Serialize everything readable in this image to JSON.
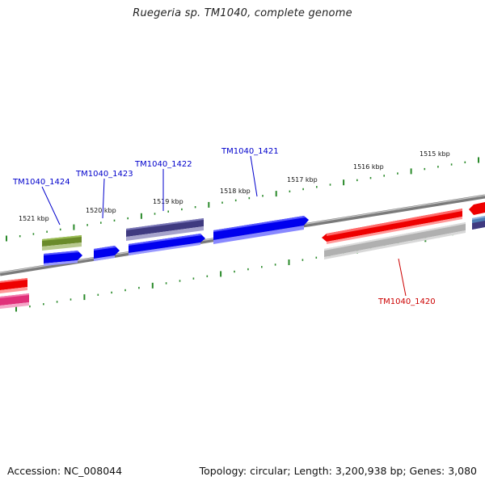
{
  "header": {
    "title": "Ruegeria sp. TM1040, complete genome"
  },
  "footer": {
    "accession": "Accession: NC_008044",
    "summary": "Topology: circular; Length: 3,200,938 bp; Genes: 3,080"
  },
  "colors": {
    "backbone": "#7d7d7d",
    "tick": "#2a8a2a",
    "gene_blue": "#0000ee",
    "gene_red": "#ee0000",
    "gene_olive": "#6a8a2a",
    "gene_slate": "#3f3a80",
    "gene_grey": "#b0b0b0",
    "gene_pink": "#e0307a",
    "gene_steel": "#4f7fb5",
    "label_blue": "#0000cc",
    "label_red": "#cc0000"
  },
  "scale_labels": [
    "1521 kbp",
    "1520 kbp",
    "1519 kbp",
    "1518 kbp",
    "1517 kbp",
    "1516 kbp",
    "1515 kbp"
  ],
  "gene_labels": [
    {
      "text": "TM1040_1424",
      "color": "label_blue"
    },
    {
      "text": "TM1040_1423",
      "color": "label_blue"
    },
    {
      "text": "TM1040_1422",
      "color": "label_blue"
    },
    {
      "text": "TM1040_1421",
      "color": "label_blue"
    },
    {
      "text": "TM1040_1420",
      "color": "label_red"
    }
  ]
}
